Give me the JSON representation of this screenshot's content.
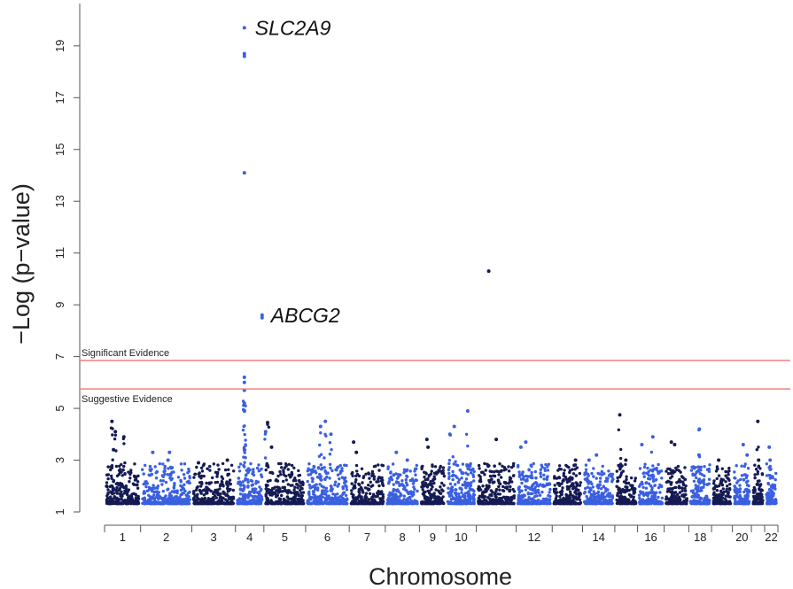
{
  "chart_data": {
    "type": "scatter",
    "subtype": "manhattan",
    "title": "",
    "xlabel": "Chromosome",
    "ylabel": "−Log (p−value)",
    "ylim": [
      1,
      20
    ],
    "yticks": [
      1,
      3,
      5,
      7,
      9,
      11,
      13,
      15,
      17,
      19
    ],
    "chromosomes": [
      "1",
      "2",
      "3",
      "4",
      "5",
      "6",
      "7",
      "8",
      "9",
      "10",
      "11",
      "12",
      "13",
      "14",
      "15",
      "16",
      "17",
      "18",
      "19",
      "20",
      "21",
      "22"
    ],
    "chromosome_tick_labels": [
      "1",
      "2",
      "3",
      "4",
      "5",
      "6",
      "7",
      "8",
      "9",
      "10",
      "12",
      "14",
      "16",
      "18",
      "20",
      "22"
    ],
    "thresholds": [
      {
        "name": "Significant Evidence",
        "value": 6.85,
        "color": "#f08080"
      },
      {
        "name": "Suggestive Evidence",
        "value": 5.75,
        "color": "#f08080"
      }
    ],
    "colors": {
      "odd_chromosomes": "#141a52",
      "even_chromosomes": "#3a5fe0"
    },
    "annotations": [
      {
        "label": "SLC2A9",
        "chromosome": "4",
        "value": 19.7
      },
      {
        "label": "ABCG2",
        "chromosome": "4",
        "value": 8.6
      }
    ],
    "series": [
      {
        "chromosome": "1",
        "peaks": [
          4.5,
          4.1,
          3.9,
          3.4
        ]
      },
      {
        "chromosome": "2",
        "peaks": [
          3.3,
          3.3,
          3.0
        ]
      },
      {
        "chromosome": "3",
        "peaks": [
          3.0,
          2.9
        ]
      },
      {
        "chromosome": "4",
        "peaks": [
          19.7,
          18.7,
          18.6,
          14.1,
          8.6,
          8.5,
          6.2,
          6.0,
          5.7,
          5.2,
          4.9,
          4.1
        ]
      },
      {
        "chromosome": "5",
        "peaks": [
          4.45,
          3.5
        ]
      },
      {
        "chromosome": "6",
        "peaks": [
          4.5,
          4.3,
          4.0
        ]
      },
      {
        "chromosome": "7",
        "peaks": [
          3.7,
          3.3
        ]
      },
      {
        "chromosome": "8",
        "peaks": [
          3.3,
          3.0
        ]
      },
      {
        "chromosome": "9",
        "peaks": [
          3.8,
          3.5
        ]
      },
      {
        "chromosome": "10",
        "peaks": [
          4.9,
          4.3,
          4.0
        ]
      },
      {
        "chromosome": "11",
        "peaks": [
          10.3,
          3.8
        ]
      },
      {
        "chromosome": "12",
        "peaks": [
          3.7,
          3.5
        ]
      },
      {
        "chromosome": "13",
        "peaks": [
          3.0,
          2.8
        ]
      },
      {
        "chromosome": "14",
        "peaks": [
          3.2,
          3.0
        ]
      },
      {
        "chromosome": "15",
        "peaks": [
          4.75,
          3.0
        ]
      },
      {
        "chromosome": "16",
        "peaks": [
          3.9,
          3.6
        ]
      },
      {
        "chromosome": "17",
        "peaks": [
          3.7,
          3.6
        ]
      },
      {
        "chromosome": "18",
        "peaks": [
          4.2,
          3.2
        ]
      },
      {
        "chromosome": "19",
        "peaks": [
          3.0
        ]
      },
      {
        "chromosome": "20",
        "peaks": [
          3.6,
          3.2
        ]
      },
      {
        "chromosome": "21",
        "peaks": [
          4.5,
          3.0
        ]
      },
      {
        "chromosome": "22",
        "peaks": [
          3.5,
          3.0
        ]
      }
    ]
  }
}
